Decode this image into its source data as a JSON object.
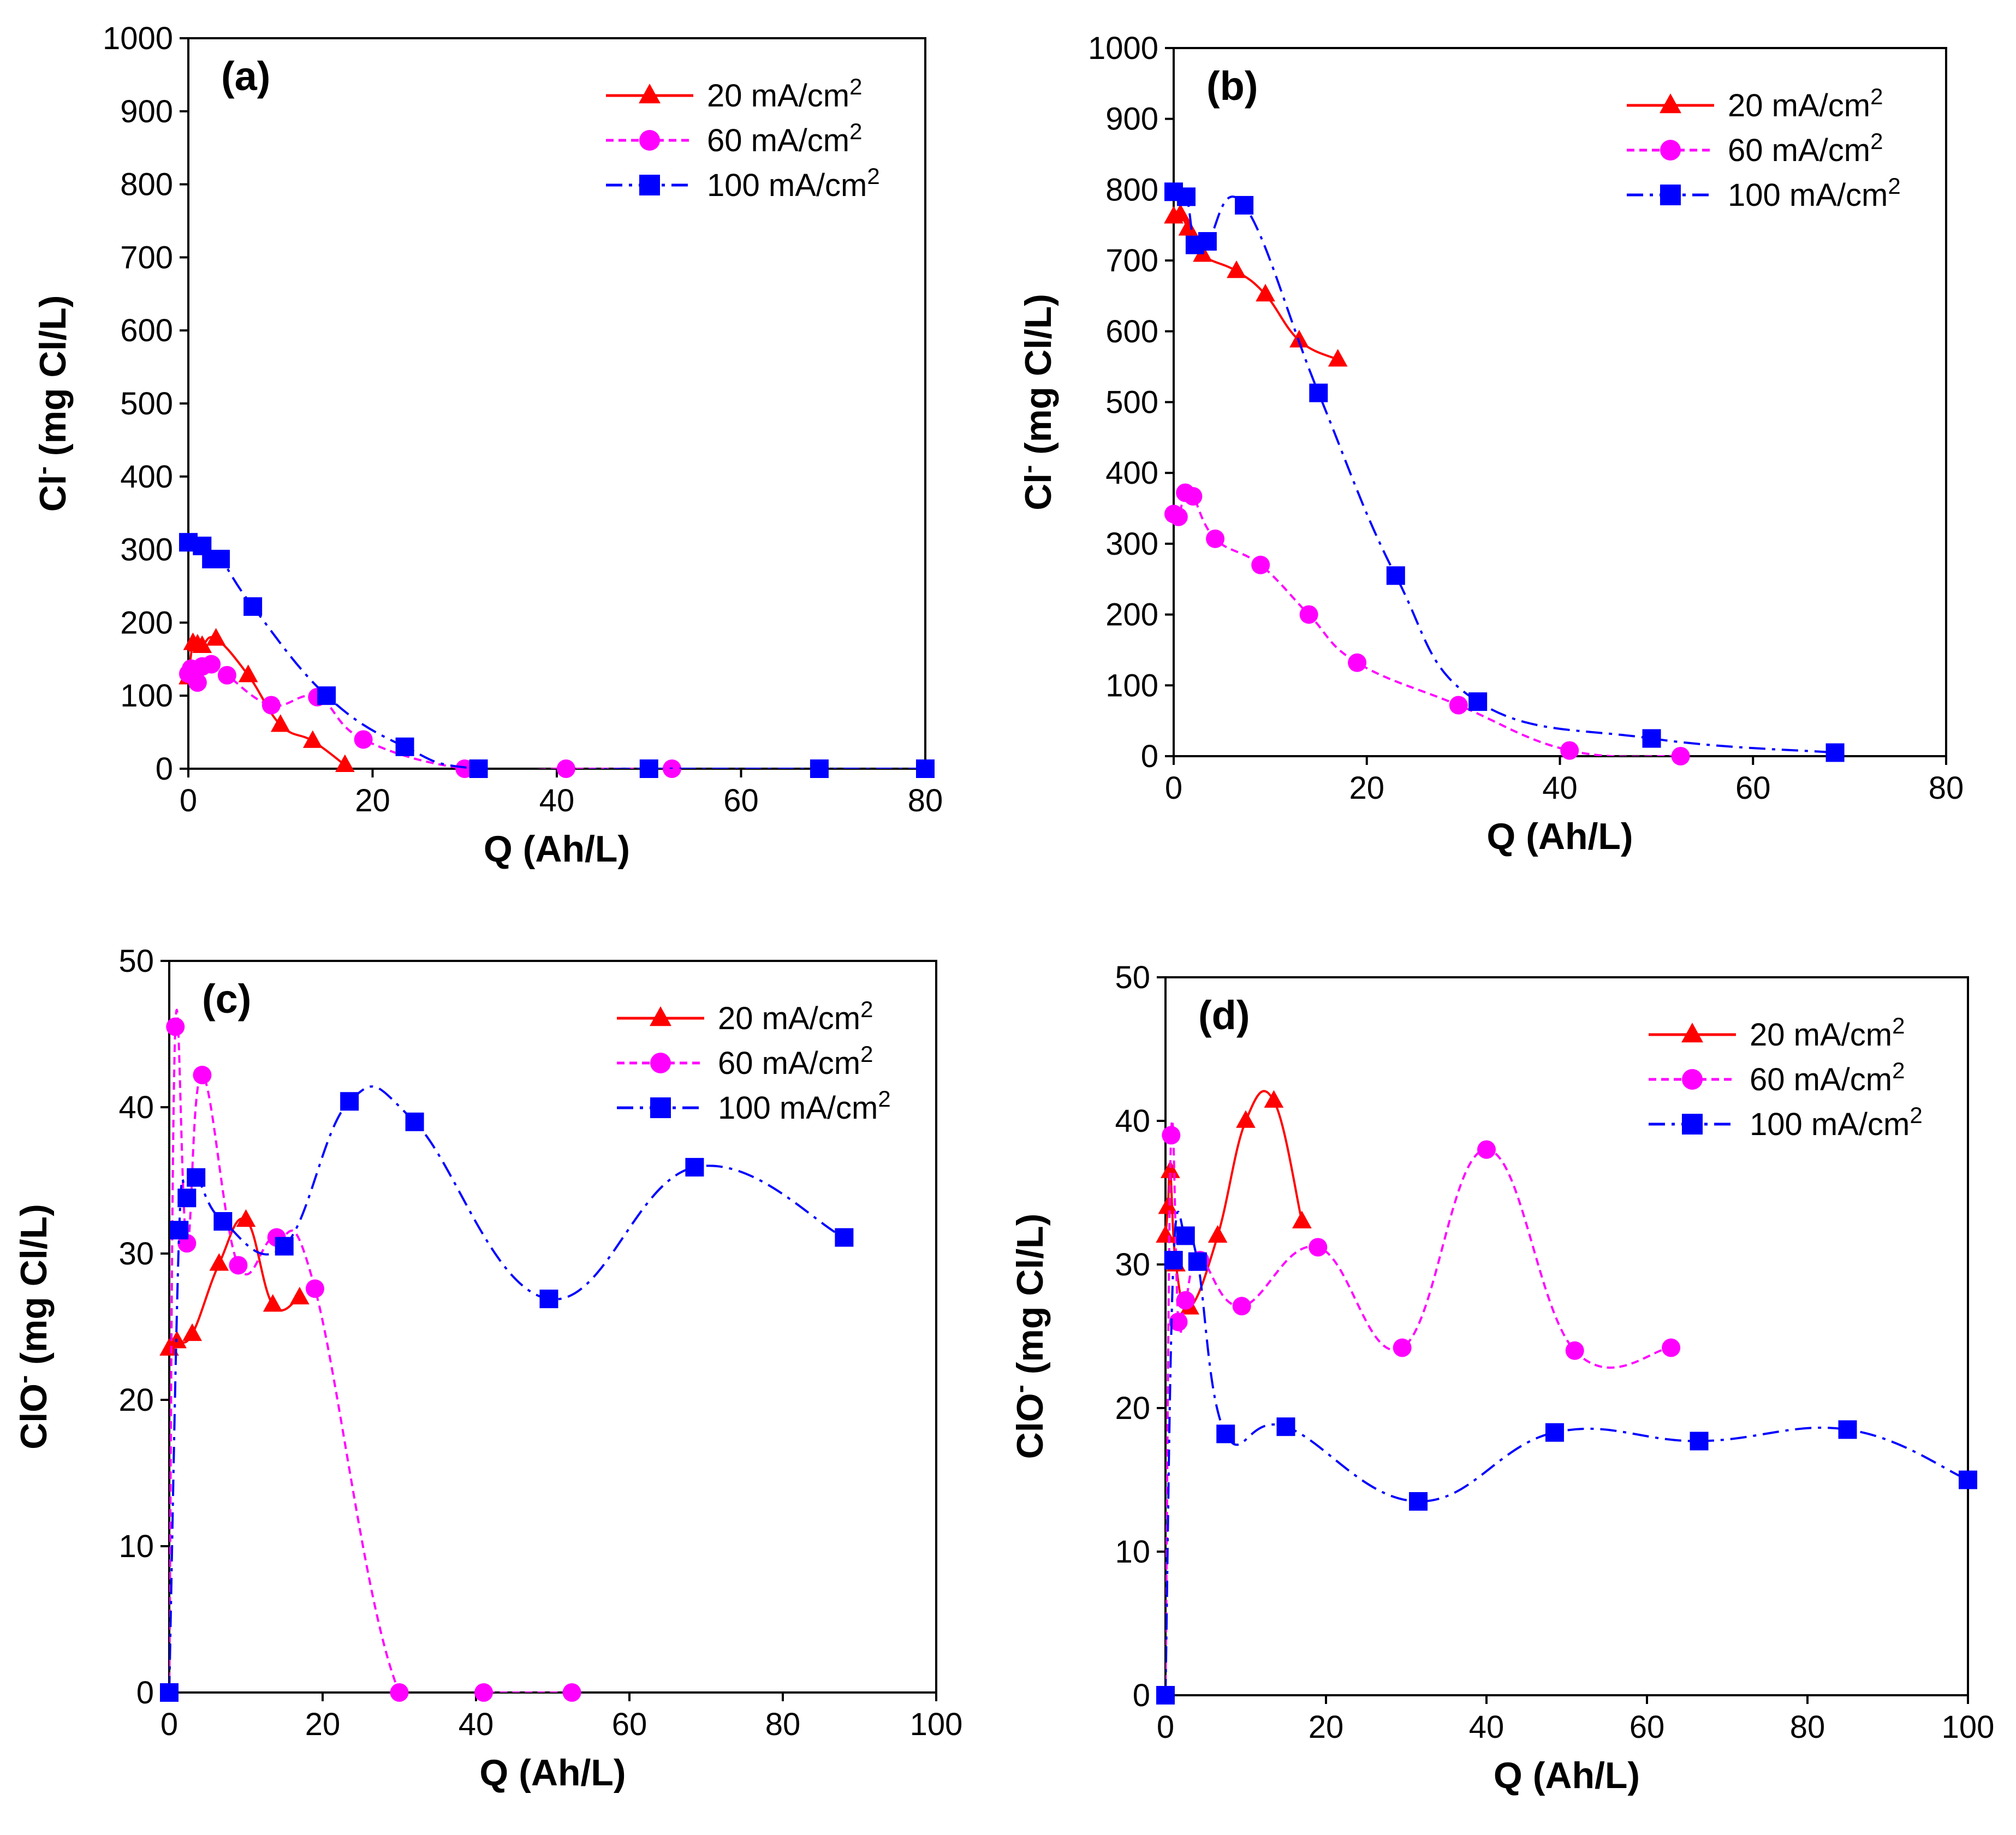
{
  "chart_data": [
    {
      "type": "line",
      "panel": "(a)",
      "xlabel": "Q (Ah/L)",
      "ylabel": "Cl⁻ (mg Cl/L)",
      "xlim": [
        0,
        80
      ],
      "ylim": [
        0,
        1000
      ],
      "xticks": [
        0,
        20,
        40,
        60,
        80
      ],
      "yticks": [
        0,
        100,
        200,
        300,
        400,
        500,
        600,
        700,
        800,
        900,
        1000
      ],
      "legend_position": "top-right",
      "series": [
        {
          "name": "20 mA/cm²",
          "color": "#ff0000",
          "marker": "triangle",
          "dash": "solid",
          "x": [
            0,
            0.5,
            1,
            1.5,
            3,
            6.5,
            10,
            13.5,
            17
          ],
          "y": [
            125,
            172,
            170,
            168,
            178,
            128,
            60,
            38,
            5
          ]
        },
        {
          "name": "60 mA/cm²",
          "color": "#ff00ff",
          "marker": "circle",
          "dash": "dashed",
          "x": [
            0,
            0.3,
            1,
            1.5,
            2.5,
            4.2,
            9,
            14,
            19,
            30,
            41,
            52.5
          ],
          "y": [
            130,
            137,
            118,
            140,
            143,
            128,
            87,
            98,
            40,
            0,
            0,
            0
          ]
        },
        {
          "name": "100 mA/cm²",
          "color": "#0000ff",
          "marker": "square",
          "dash": "dashdot",
          "x": [
            0,
            1.5,
            2.5,
            3.5,
            7,
            15,
            23.5,
            31.5,
            50,
            68.5,
            80
          ],
          "y": [
            310,
            305,
            287,
            287,
            222,
            100,
            30,
            0,
            0,
            0,
            0
          ]
        }
      ]
    },
    {
      "type": "line",
      "panel": "(b)",
      "xlabel": "Q (Ah/L)",
      "ylabel": "Cl⁻ (mg Cl/L)",
      "xlim": [
        0,
        80
      ],
      "ylim": [
        0,
        1000
      ],
      "xticks": [
        0,
        20,
        40,
        60,
        80
      ],
      "yticks": [
        0,
        100,
        200,
        300,
        400,
        500,
        600,
        700,
        800,
        900,
        1000
      ],
      "legend_position": "top-right",
      "series": [
        {
          "name": "20 mA/cm²",
          "color": "#ff0000",
          "marker": "triangle",
          "dash": "solid",
          "x": [
            0,
            0.7,
            1.5,
            3,
            6.5,
            9.5,
            13,
            17
          ],
          "y": [
            762,
            765,
            745,
            708,
            685,
            652,
            587,
            560
          ]
        },
        {
          "name": "60 mA/cm²",
          "color": "#ff00ff",
          "marker": "circle",
          "dash": "dashed",
          "x": [
            0,
            0.5,
            1.2,
            2,
            4.3,
            9,
            14,
            19,
            29.5,
            41,
            52.5
          ],
          "y": [
            342,
            338,
            372,
            367,
            307,
            270,
            200,
            132,
            72,
            8,
            0
          ]
        },
        {
          "name": "100 mA/cm²",
          "color": "#0000ff",
          "marker": "square",
          "dash": "dashdot",
          "x": [
            0,
            1.3,
            2.2,
            3.5,
            7.3,
            15,
            23,
            31.5,
            49.5,
            68.5
          ],
          "y": [
            797,
            790,
            722,
            727,
            778,
            513,
            255,
            77,
            25,
            5
          ]
        }
      ]
    },
    {
      "type": "line",
      "panel": "(c)",
      "xlabel": "Q (Ah/L)",
      "ylabel": "ClO⁻ (mg Cl/L)",
      "xlim": [
        0,
        100
      ],
      "ylim": [
        0,
        50
      ],
      "xticks": [
        0,
        20,
        40,
        60,
        80,
        100
      ],
      "yticks": [
        0,
        10,
        20,
        30,
        40,
        50
      ],
      "legend_position": "top-right",
      "series": [
        {
          "name": "20 mA/cm²",
          "color": "#ff0000",
          "marker": "triangle",
          "dash": "solid",
          "x": [
            0,
            1,
            3,
            6.5,
            10,
            13.5,
            17
          ],
          "y": [
            23.5,
            24,
            24.5,
            29.3,
            32.3,
            26.5,
            27
          ]
        },
        {
          "name": "60 mA/cm²",
          "color": "#ff00ff",
          "marker": "circle",
          "dash": "dashed",
          "x": [
            0,
            0.8,
            2.3,
            4.3,
            9,
            14,
            19,
            30,
            41,
            52.5
          ],
          "y": [
            0,
            45.5,
            30.7,
            42.2,
            29.2,
            31.1,
            27.6,
            0,
            0,
            0
          ]
        },
        {
          "name": "100 mA/cm²",
          "color": "#0000ff",
          "marker": "square",
          "dash": "dashdot",
          "x": [
            0,
            1.3,
            2.3,
            3.5,
            7,
            15,
            23.5,
            32,
            49.5,
            68.5,
            88
          ],
          "y": [
            0,
            31.6,
            33.8,
            35.2,
            32.2,
            30.5,
            40.4,
            39,
            26.9,
            35.9,
            31.1
          ]
        }
      ]
    },
    {
      "type": "line",
      "panel": "(d)",
      "xlabel": "Q (Ah/L)",
      "ylabel": "ClO⁻ (mg Cl/L)",
      "xlim": [
        0,
        100
      ],
      "ylim": [
        0,
        50
      ],
      "xticks": [
        0,
        20,
        40,
        60,
        80,
        100
      ],
      "yticks": [
        0,
        10,
        20,
        30,
        40,
        50
      ],
      "legend_position": "top-right",
      "series": [
        {
          "name": "20 mA/cm²",
          "color": "#ff0000",
          "marker": "triangle",
          "dash": "solid",
          "x": [
            0,
            0.3,
            0.6,
            1.3,
            3,
            6.5,
            10,
            13.5,
            17
          ],
          "y": [
            32,
            34,
            36.5,
            30,
            27,
            32,
            40,
            41.4,
            33
          ]
        },
        {
          "name": "60 mA/cm²",
          "color": "#ff00ff",
          "marker": "circle",
          "dash": "dashed",
          "x": [
            0,
            0.7,
            1.6,
            2.5,
            4.3,
            9.5,
            19,
            29.5,
            40,
            51,
            63
          ],
          "y": [
            0,
            39,
            26,
            27.5,
            30.3,
            27.1,
            31.2,
            24.2,
            38,
            24,
            24.2
          ]
        },
        {
          "name": "100 mA/cm²",
          "color": "#0000ff",
          "marker": "square",
          "dash": "dashdot",
          "x": [
            0,
            1,
            2.5,
            4,
            7.5,
            15,
            31.5,
            48.5,
            66.5,
            85,
            100
          ],
          "y": [
            0,
            30.3,
            32,
            30.2,
            18.2,
            18.7,
            13.5,
            18.3,
            17.7,
            18.5,
            15
          ]
        }
      ]
    }
  ]
}
